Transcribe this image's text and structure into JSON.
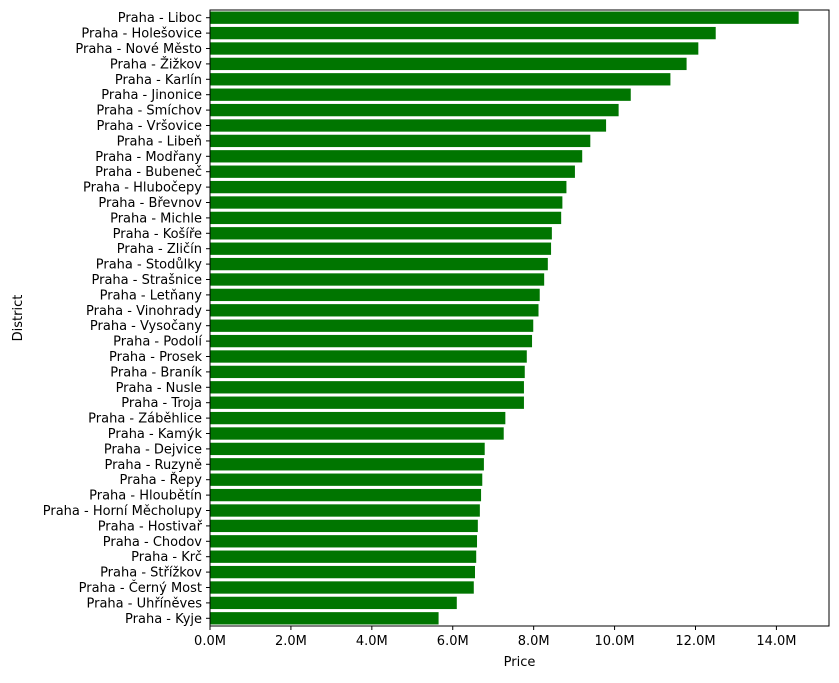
{
  "chart_data": {
    "type": "bar",
    "orientation": "horizontal",
    "title": "",
    "xlabel": "Price",
    "ylabel": "District",
    "xlim": [
      0,
      15300000
    ],
    "x_ticks": [
      0,
      2000000,
      4000000,
      6000000,
      8000000,
      10000000,
      12000000,
      14000000
    ],
    "x_tick_labels": [
      "0.0M",
      "2.0M",
      "4.0M",
      "6.0M",
      "8.0M",
      "10.0M",
      "12.0M",
      "14.0M"
    ],
    "grid": false,
    "legend": "none",
    "bar_color": "#007500",
    "categories": [
      "Praha - Liboc",
      "Praha - Holešovice",
      "Praha - Nové Město",
      "Praha - Žižkov",
      "Praha - Karlín",
      "Praha - Jinonice",
      "Praha - Smíchov",
      "Praha - Vršovice",
      "Praha - Libeň",
      "Praha - Modřany",
      "Praha - Bubeneč",
      "Praha - Hlubočepy",
      "Praha - Břevnov",
      "Praha - Michle",
      "Praha - Košíře",
      "Praha - Zličín",
      "Praha - Stodůlky",
      "Praha - Strašnice",
      "Praha - Letňany",
      "Praha - Vinohrady",
      "Praha - Vysočany",
      "Praha - Podolí",
      "Praha - Prosek",
      "Praha - Braník",
      "Praha - Nusle",
      "Praha - Troja",
      "Praha - Záběhlice",
      "Praha - Kamýk",
      "Praha - Dejvice",
      "Praha - Ruzyně",
      "Praha - Řepy",
      "Praha - Hloubětín",
      "Praha - Horní Měcholupy",
      "Praha - Hostivař",
      "Praha - Chodov",
      "Praha - Krč",
      "Praha - Střížkov",
      "Praha - Černý Most",
      "Praha - Uhříněves",
      "Praha - Kyje"
    ],
    "values": [
      14550000,
      12500000,
      12070000,
      11780000,
      11380000,
      10400000,
      10100000,
      9790000,
      9400000,
      9200000,
      9020000,
      8810000,
      8710000,
      8680000,
      8450000,
      8430000,
      8350000,
      8260000,
      8150000,
      8120000,
      7990000,
      7960000,
      7830000,
      7780000,
      7760000,
      7760000,
      7300000,
      7260000,
      6790000,
      6770000,
      6730000,
      6700000,
      6670000,
      6620000,
      6600000,
      6580000,
      6550000,
      6520000,
      6100000,
      5650000
    ]
  }
}
